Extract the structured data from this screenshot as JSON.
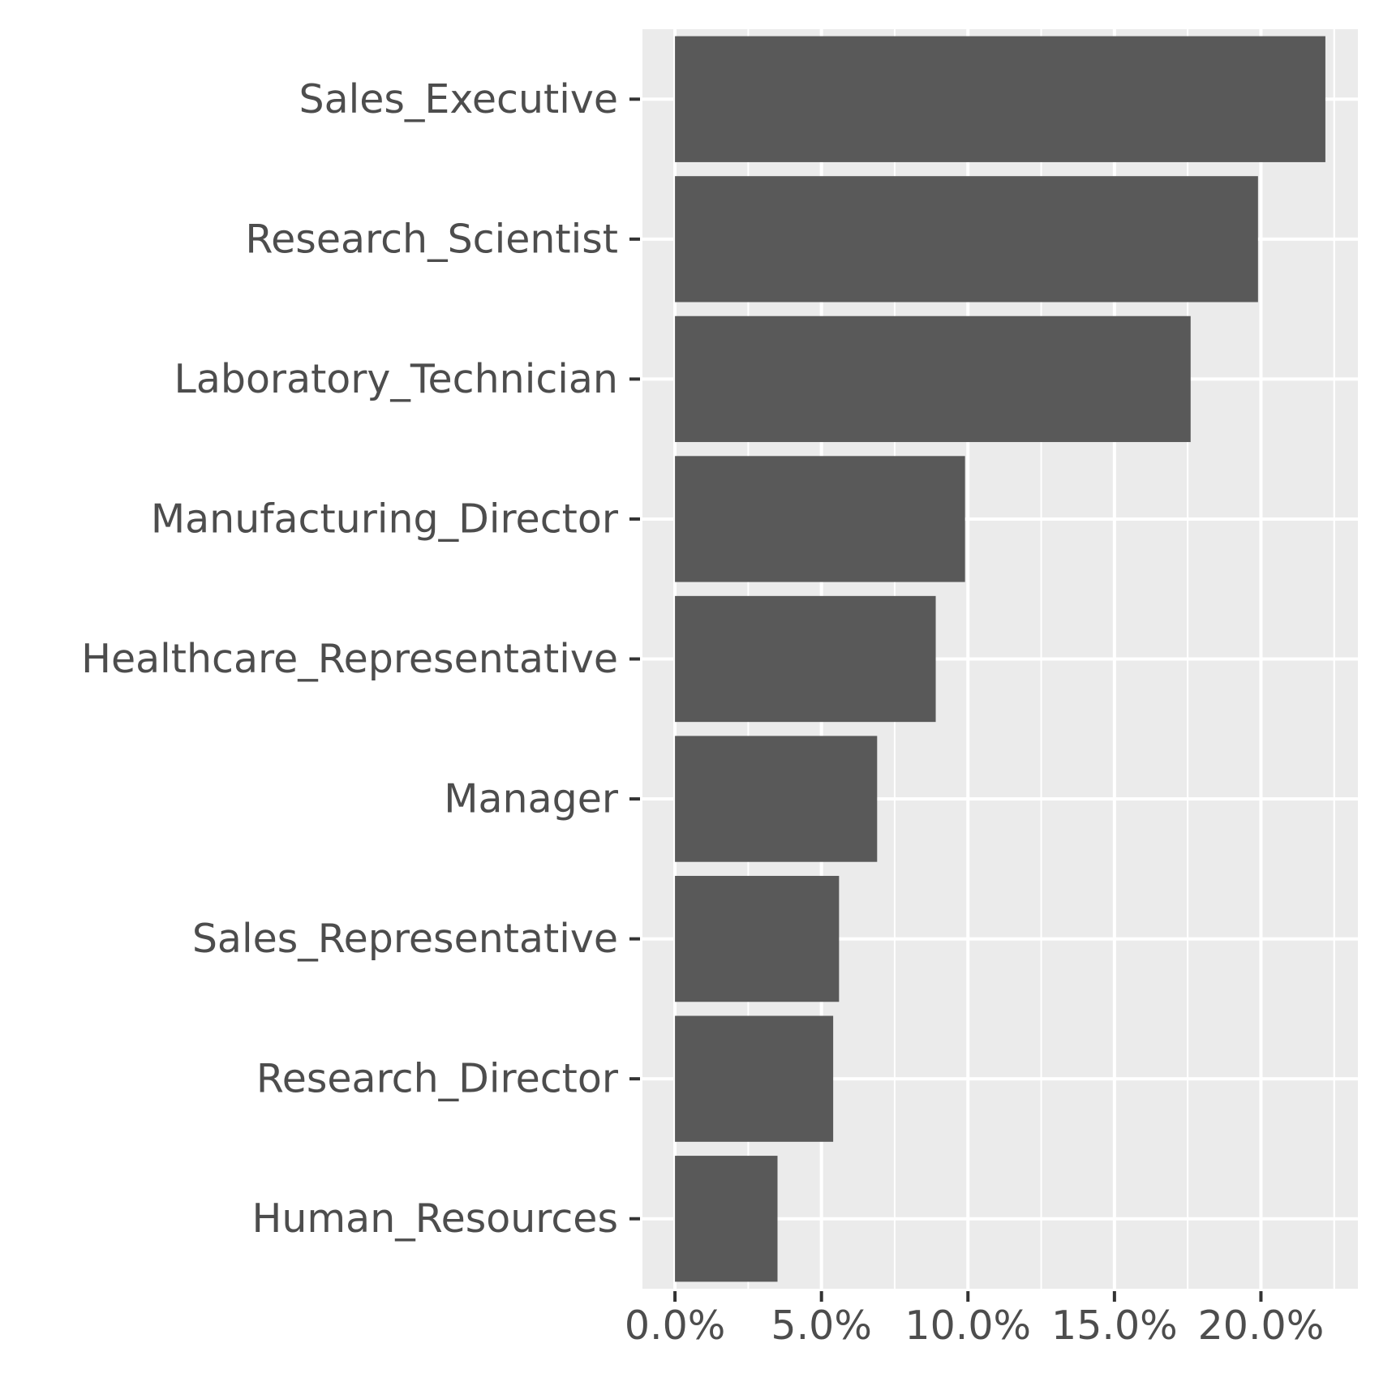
{
  "chart_data": {
    "type": "bar",
    "orientation": "horizontal",
    "categories": [
      "Sales_Executive",
      "Research_Scientist",
      "Laboratory_Technician",
      "Manufacturing_Director",
      "Healthcare_Representative",
      "Manager",
      "Sales_Representative",
      "Research_Director",
      "Human_Resources"
    ],
    "values": [
      22.2,
      19.9,
      17.6,
      9.9,
      8.9,
      6.9,
      5.6,
      5.4,
      3.5
    ],
    "x_ticks": [
      0,
      5,
      10,
      15,
      20
    ],
    "x_tick_labels": [
      "0.0%",
      "5.0%",
      "10.0%",
      "15.0%",
      "20.0%"
    ],
    "xlim": [
      -1.11,
      23.31
    ],
    "title": "",
    "xlabel": "",
    "ylabel": "",
    "grid": true,
    "legend": "none",
    "colors": {
      "bar": "#595959",
      "panel": "#ebebeb",
      "grid": "#ffffff",
      "text": "#4d4d4d",
      "tick": "#333333"
    }
  }
}
